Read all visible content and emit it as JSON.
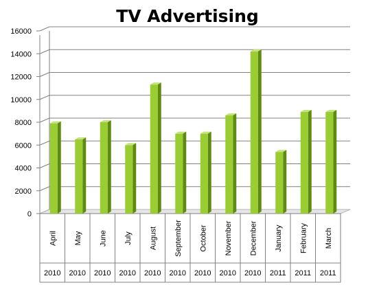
{
  "chart_data": {
    "type": "bar",
    "title": "TV Advertising",
    "xlabel": "",
    "ylabel": "",
    "ylim": [
      0,
      16000
    ],
    "yticks": [
      "0",
      "2000",
      "4000",
      "6000",
      "8000",
      "10000",
      "12000",
      "14000",
      "16000"
    ],
    "categories": [
      "April",
      "May",
      "June",
      "July",
      "August",
      "September",
      "October",
      "November",
      "December",
      "January",
      "February",
      "March"
    ],
    "years": [
      "2010",
      "2010",
      "2010",
      "2010",
      "2010",
      "2010",
      "2010",
      "2010",
      "2010",
      "2011",
      "2011",
      "2011"
    ],
    "values": [
      7900,
      6500,
      8000,
      6000,
      11300,
      7000,
      7000,
      8600,
      14200,
      5400,
      8900,
      8900
    ],
    "grid": true,
    "legend": "none",
    "colors": {
      "bar_front": "#9acd32",
      "bar_top": "#c3e47a",
      "bar_side": "#5f8a12",
      "grid": "#808080",
      "floor": "#b4b4b4"
    }
  }
}
